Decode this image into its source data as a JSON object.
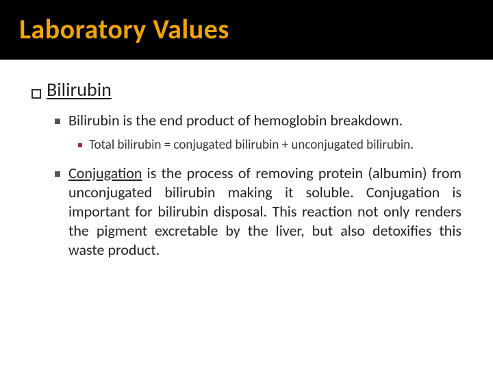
{
  "colors": {
    "title_bg": "#000000",
    "title_fg": "#f0a500",
    "body_text": "#222222",
    "sub_bullet_red": "#a03030",
    "page_bg": "#ffffff"
  },
  "typography": {
    "title_fontsize": 40,
    "level1_fontsize": 28,
    "level2_fontsize": 22,
    "level3_fontsize": 19,
    "title_family": "Segoe UI",
    "body_family": "Segoe UI"
  },
  "title": "Laboratory Values",
  "section": {
    "heading": "Bilirubin",
    "bullets": [
      {
        "text": "Bilirubin is the end product of hemoglobin breakdown.",
        "sub": [
          "Total bilirubin = conjugated bilirubin + unconjugated bilirubin."
        ]
      },
      {
        "lead_underlined": "Conjugation",
        "rest": " is the process of removing protein (albumin) from unconjugated bilirubin making it soluble. Conjugation is important for bilirubin disposal. This reaction not only renders the pigment excretable by the liver, but also detoxifies this waste product."
      }
    ]
  }
}
